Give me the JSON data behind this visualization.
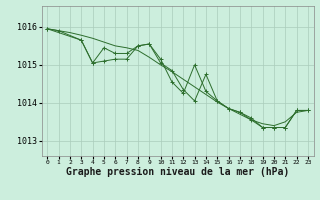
{
  "background_color": "#cceedd",
  "grid_color": "#aaccbb",
  "line_color": "#2d6e2d",
  "marker_color": "#2d6e2d",
  "xlabel": "Graphe pression niveau de la mer (hPa)",
  "xlabel_fontsize": 7,
  "ylabel_ticks": [
    1013,
    1014,
    1015,
    1016
  ],
  "ylim": [
    1012.6,
    1016.55
  ],
  "xlim": [
    -0.5,
    23.5
  ],
  "series1_x": [
    0,
    1,
    3,
    4,
    5,
    6,
    7,
    8,
    9,
    10,
    11,
    12,
    13,
    14,
    15,
    16,
    17,
    18,
    19,
    20,
    21,
    22,
    23
  ],
  "series1_y": [
    1015.95,
    1015.9,
    1015.65,
    1015.05,
    1015.1,
    1015.15,
    1015.15,
    1015.5,
    1015.55,
    1015.05,
    1014.85,
    1014.35,
    1014.05,
    1014.75,
    1014.05,
    1013.85,
    1013.75,
    1013.6,
    1013.35,
    1013.35,
    1013.35,
    1013.8,
    1013.8
  ],
  "series2_x": [
    0,
    3,
    4,
    5,
    6,
    7,
    8,
    9,
    10,
    11,
    12,
    13,
    14,
    15,
    16,
    17,
    18,
    19,
    20,
    21,
    22,
    23
  ],
  "series2_y": [
    1015.95,
    1015.65,
    1015.05,
    1015.45,
    1015.3,
    1015.3,
    1015.5,
    1015.55,
    1015.15,
    1014.55,
    1014.25,
    1015.0,
    1014.3,
    1014.05,
    1013.85,
    1013.75,
    1013.55,
    1013.35,
    1013.35,
    1013.35,
    1013.8,
    1013.8
  ],
  "smooth_x": [
    0,
    1,
    2,
    3,
    4,
    5,
    6,
    7,
    8,
    9,
    10,
    11,
    12,
    13,
    14,
    15,
    16,
    17,
    18,
    19,
    20,
    21,
    22,
    23
  ],
  "smooth_y": [
    1015.95,
    1015.9,
    1015.85,
    1015.78,
    1015.7,
    1015.6,
    1015.5,
    1015.45,
    1015.38,
    1015.2,
    1015.0,
    1014.82,
    1014.62,
    1014.42,
    1014.22,
    1014.02,
    1013.85,
    1013.7,
    1013.55,
    1013.45,
    1013.4,
    1013.5,
    1013.75,
    1013.8
  ]
}
